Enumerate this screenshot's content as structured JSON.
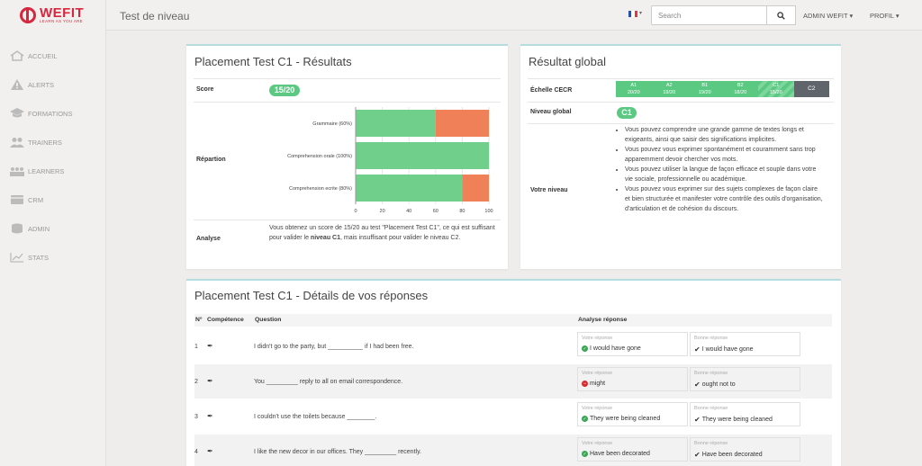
{
  "brand": {
    "name": "WEFIT",
    "tagline": "LEARN AS YOU ARE"
  },
  "sidebar": {
    "items": [
      {
        "label": "ACCUEIL",
        "icon": "home-icon"
      },
      {
        "label": "ALERTS",
        "icon": "warning-icon"
      },
      {
        "label": "FORMATIONS",
        "icon": "graduation-cap-icon"
      },
      {
        "label": "TRAINERS",
        "icon": "users-icon"
      },
      {
        "label": "LEARNERS",
        "icon": "group-icon"
      },
      {
        "label": "CRM",
        "icon": "card-icon"
      },
      {
        "label": "ADMIN",
        "icon": "database-icon"
      },
      {
        "label": "STATS",
        "icon": "chart-icon"
      }
    ]
  },
  "header": {
    "title": "Test de niveau",
    "search_placeholder": "Search",
    "admin_label": "ADMIN WEFIT",
    "profile_label": "PROFIL",
    "language": "fr"
  },
  "results": {
    "title": "Placement Test C1 - Résultats",
    "score_label": "Score",
    "score_value": "15/20",
    "repartition_label": "Répartion",
    "analysis_label": "Analyse",
    "analysis_text_1": "Vous obtenez un score de 15/20 au test \"Placement Test C1\", ce qui est suffisant pour valider le ",
    "analysis_bold": "niveau C1",
    "analysis_text_2": ", mais insuffisant pour valider le niveau C2."
  },
  "chart_data": {
    "type": "bar",
    "orientation": "horizontal",
    "stacked": true,
    "categories": [
      "Grammaire (60%)",
      "Comprehension orale (100%)",
      "Comprehension ecrite (80%)"
    ],
    "series": [
      {
        "values": [
          60,
          100,
          80
        ],
        "color": "#6fcf8b"
      },
      {
        "values": [
          40,
          0,
          20
        ],
        "color": "#ef8058"
      }
    ],
    "xlim": [
      0,
      100
    ],
    "xticks": [
      0,
      20,
      40,
      60,
      80,
      100
    ],
    "grid": true
  },
  "global": {
    "title": "Résultat global",
    "cecr_label": "Échelle CECR",
    "levels": [
      {
        "name": "A1",
        "score": "20/20",
        "state": "passed"
      },
      {
        "name": "A2",
        "score": "19/20",
        "state": "passed"
      },
      {
        "name": "B1",
        "score": "19/20",
        "state": "passed"
      },
      {
        "name": "B2",
        "score": "18/20",
        "state": "passed"
      },
      {
        "name": "C1",
        "score": "15/20",
        "state": "current"
      },
      {
        "name": "C2",
        "score": "",
        "state": "failed"
      }
    ],
    "niveau_label": "Niveau global",
    "niveau_value": "C1",
    "votre_label": "Votre niveau",
    "descriptions": [
      "Vous pouvez comprendre une grande gamme de textes longs et exigeants, ainsi que saisir des significations implicites.",
      "Vous pouvez vous exprimer spontanément et couramment sans trop apparemment devoir chercher vos mots.",
      "Vous pouvez utiliser la langue de façon efficace et souple dans votre vie sociale, professionnelle ou académique.",
      "Vous pouvez vous exprimer sur des sujets complexes de façon claire et bien structurée et manifester votre contrôle des outils d'organisation, d'articulation et de cohésion du discours."
    ]
  },
  "details": {
    "title": "Placement Test C1 - Détails de vos réponses",
    "columns": {
      "num": "N°",
      "competence": "Compétence",
      "question": "Question",
      "analysis": "Analyse réponse"
    },
    "your_answer_caption": "Votre réponse",
    "good_answer_caption": "Bonne réponse",
    "rows": [
      {
        "num": "1",
        "question": "I didn't go to the party, but __________ if I had been free.",
        "answer": "I would have gone",
        "correct": true,
        "good": "I would have gone"
      },
      {
        "num": "2",
        "question": "You _________ reply to all on email correspondence.",
        "answer": "might",
        "correct": false,
        "good": "ought not to"
      },
      {
        "num": "3",
        "question": "I couldn't use the toilets because ________.",
        "answer": "They were being cleaned",
        "correct": true,
        "good": "They were being cleaned"
      },
      {
        "num": "4",
        "question": "I like the new decor in our offices. They _________ recently.",
        "answer": "Have been decorated",
        "correct": true,
        "good": "Have been decorated"
      }
    ]
  }
}
